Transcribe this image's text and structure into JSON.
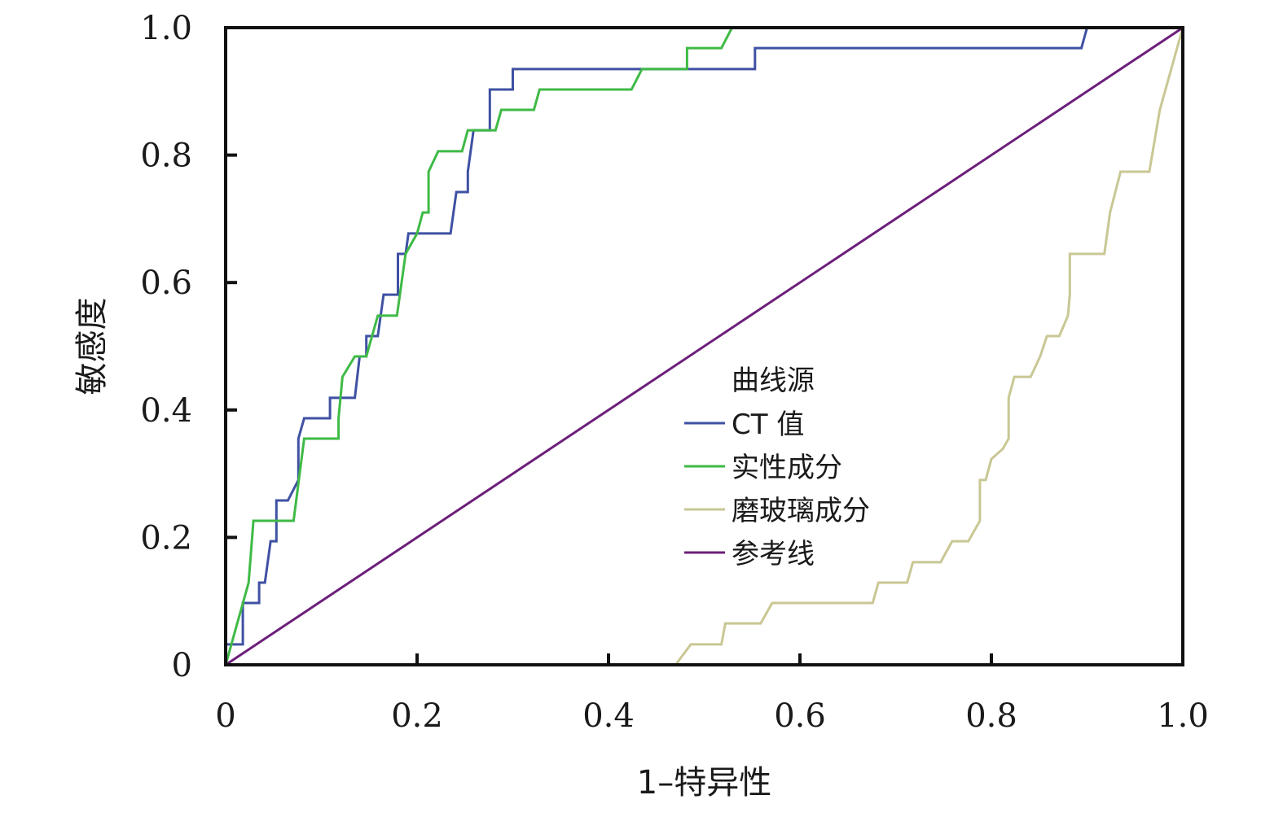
{
  "chart_data": {
    "type": "line",
    "xlabel": "1–特异性",
    "ylabel": "敏感度",
    "xlim": [
      0,
      1
    ],
    "ylim": [
      0,
      1
    ],
    "xticks": [
      "0",
      "0.2",
      "0.4",
      "0.6",
      "0.8",
      "1.0"
    ],
    "yticks": [
      "0",
      "0.2",
      "0.4",
      "0.6",
      "0.8",
      "1.0"
    ],
    "grid": false,
    "legend": {
      "title": "曲线源",
      "position": "center-right"
    },
    "series": [
      {
        "name": "CT 值",
        "color": "#3f51a3",
        "points": [
          [
            0,
            0
          ],
          [
            0,
            0.032
          ],
          [
            0.018,
            0.032
          ],
          [
            0.018,
            0.097
          ],
          [
            0.035,
            0.097
          ],
          [
            0.035,
            0.129
          ],
          [
            0.041,
            0.129
          ],
          [
            0.047,
            0.194
          ],
          [
            0.053,
            0.194
          ],
          [
            0.053,
            0.258
          ],
          [
            0.065,
            0.258
          ],
          [
            0.076,
            0.29
          ],
          [
            0.076,
            0.355
          ],
          [
            0.082,
            0.387
          ],
          [
            0.109,
            0.387
          ],
          [
            0.109,
            0.419
          ],
          [
            0.135,
            0.419
          ],
          [
            0.14,
            0.484
          ],
          [
            0.147,
            0.484
          ],
          [
            0.147,
            0.516
          ],
          [
            0.159,
            0.516
          ],
          [
            0.165,
            0.581
          ],
          [
            0.18,
            0.581
          ],
          [
            0.18,
            0.645
          ],
          [
            0.188,
            0.645
          ],
          [
            0.191,
            0.677
          ],
          [
            0.235,
            0.677
          ],
          [
            0.241,
            0.742
          ],
          [
            0.253,
            0.742
          ],
          [
            0.253,
            0.774
          ],
          [
            0.259,
            0.839
          ],
          [
            0.276,
            0.839
          ],
          [
            0.276,
            0.903
          ],
          [
            0.3,
            0.903
          ],
          [
            0.3,
            0.935
          ],
          [
            0.553,
            0.935
          ],
          [
            0.553,
            0.968
          ],
          [
            0.894,
            0.968
          ],
          [
            0.9,
            1
          ],
          [
            1,
            1
          ]
        ]
      },
      {
        "name": "实性成分",
        "color": "#3fba46",
        "points": [
          [
            0,
            0
          ],
          [
            0.024,
            0.129
          ],
          [
            0.029,
            0.226
          ],
          [
            0.071,
            0.226
          ],
          [
            0.082,
            0.355
          ],
          [
            0.118,
            0.355
          ],
          [
            0.118,
            0.387
          ],
          [
            0.122,
            0.452
          ],
          [
            0.135,
            0.484
          ],
          [
            0.147,
            0.484
          ],
          [
            0.159,
            0.548
          ],
          [
            0.179,
            0.548
          ],
          [
            0.188,
            0.645
          ],
          [
            0.2,
            0.677
          ],
          [
            0.206,
            0.71
          ],
          [
            0.212,
            0.71
          ],
          [
            0.212,
            0.774
          ],
          [
            0.222,
            0.806
          ],
          [
            0.247,
            0.806
          ],
          [
            0.253,
            0.839
          ],
          [
            0.282,
            0.839
          ],
          [
            0.288,
            0.871
          ],
          [
            0.322,
            0.871
          ],
          [
            0.328,
            0.903
          ],
          [
            0.424,
            0.903
          ],
          [
            0.435,
            0.935
          ],
          [
            0.482,
            0.935
          ],
          [
            0.482,
            0.968
          ],
          [
            0.518,
            0.968
          ],
          [
            0.529,
            1
          ],
          [
            1,
            1
          ]
        ]
      },
      {
        "name": "磨玻璃成分",
        "color": "#c9c794",
        "points": [
          [
            0,
            0
          ],
          [
            0.47,
            0
          ],
          [
            0.486,
            0.032
          ],
          [
            0.518,
            0.032
          ],
          [
            0.522,
            0.065
          ],
          [
            0.559,
            0.065
          ],
          [
            0.571,
            0.097
          ],
          [
            0.676,
            0.097
          ],
          [
            0.682,
            0.129
          ],
          [
            0.712,
            0.129
          ],
          [
            0.718,
            0.161
          ],
          [
            0.747,
            0.161
          ],
          [
            0.759,
            0.194
          ],
          [
            0.776,
            0.194
          ],
          [
            0.788,
            0.226
          ],
          [
            0.788,
            0.29
          ],
          [
            0.794,
            0.29
          ],
          [
            0.8,
            0.323
          ],
          [
            0.812,
            0.339
          ],
          [
            0.818,
            0.355
          ],
          [
            0.818,
            0.419
          ],
          [
            0.824,
            0.452
          ],
          [
            0.841,
            0.452
          ],
          [
            0.851,
            0.484
          ],
          [
            0.858,
            0.516
          ],
          [
            0.871,
            0.516
          ],
          [
            0.88,
            0.548
          ],
          [
            0.882,
            0.581
          ],
          [
            0.882,
            0.645
          ],
          [
            0.918,
            0.645
          ],
          [
            0.924,
            0.71
          ],
          [
            0.935,
            0.774
          ],
          [
            0.965,
            0.774
          ],
          [
            0.976,
            0.871
          ],
          [
            1,
            1
          ]
        ]
      },
      {
        "name": "参考线",
        "color": "#6c1f7a",
        "points": [
          [
            0,
            0
          ],
          [
            1,
            1
          ]
        ]
      }
    ]
  }
}
